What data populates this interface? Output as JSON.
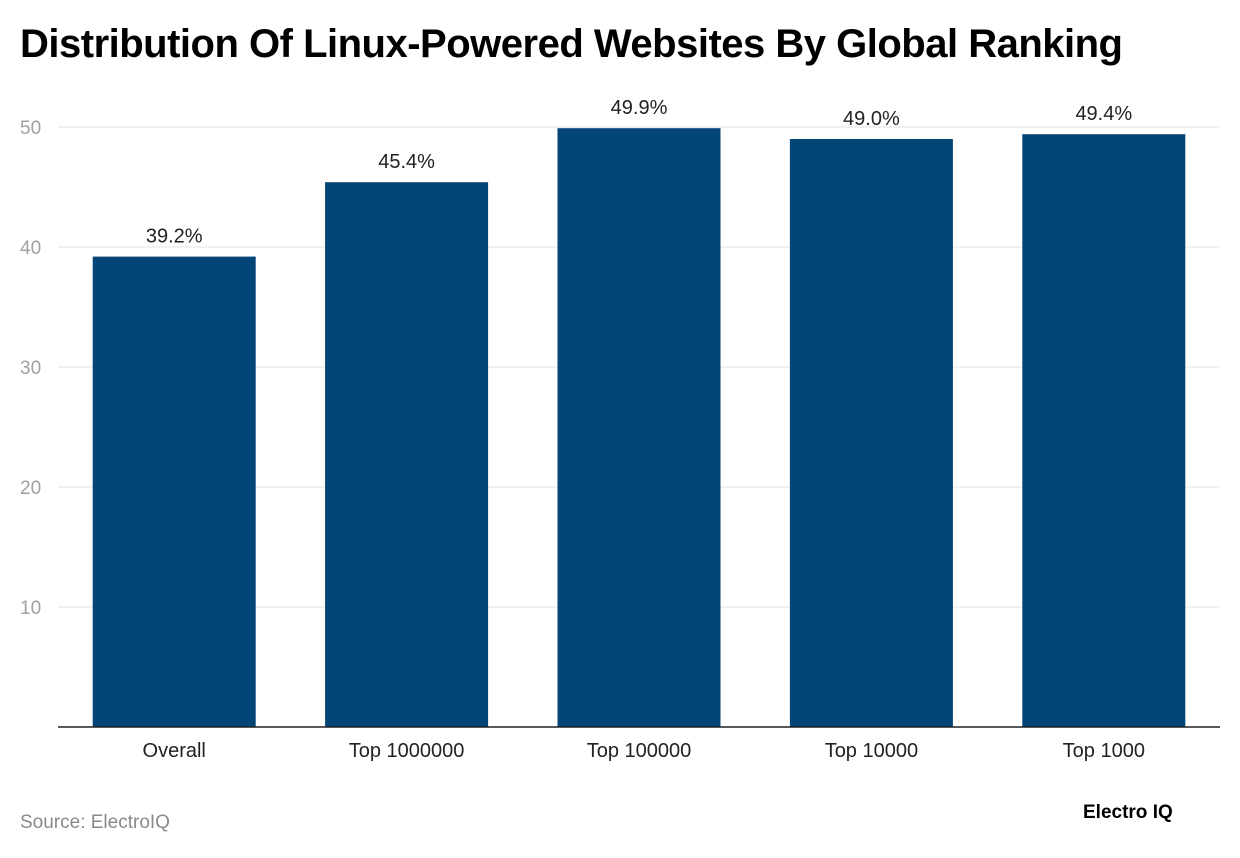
{
  "chart_data": {
    "type": "bar",
    "title": "Distribution Of Linux-Powered Websites By Global Ranking",
    "categories": [
      "Overall",
      "Top 1000000",
      "Top 100000",
      "Top 10000",
      "Top 1000"
    ],
    "values": [
      39.2,
      45.4,
      49.9,
      49.0,
      49.4
    ],
    "data_labels": [
      "39.2%",
      "45.4%",
      "49.9%",
      "49.0%",
      "49.4%"
    ],
    "xlabel": "",
    "ylabel": "",
    "ylim": [
      0,
      50
    ],
    "yticks": [
      10,
      20,
      30,
      40,
      50
    ],
    "grid": true,
    "bar_color": "#044577"
  },
  "footer": {
    "source": "Source: ElectroIQ",
    "logo": "Electro IQ"
  }
}
